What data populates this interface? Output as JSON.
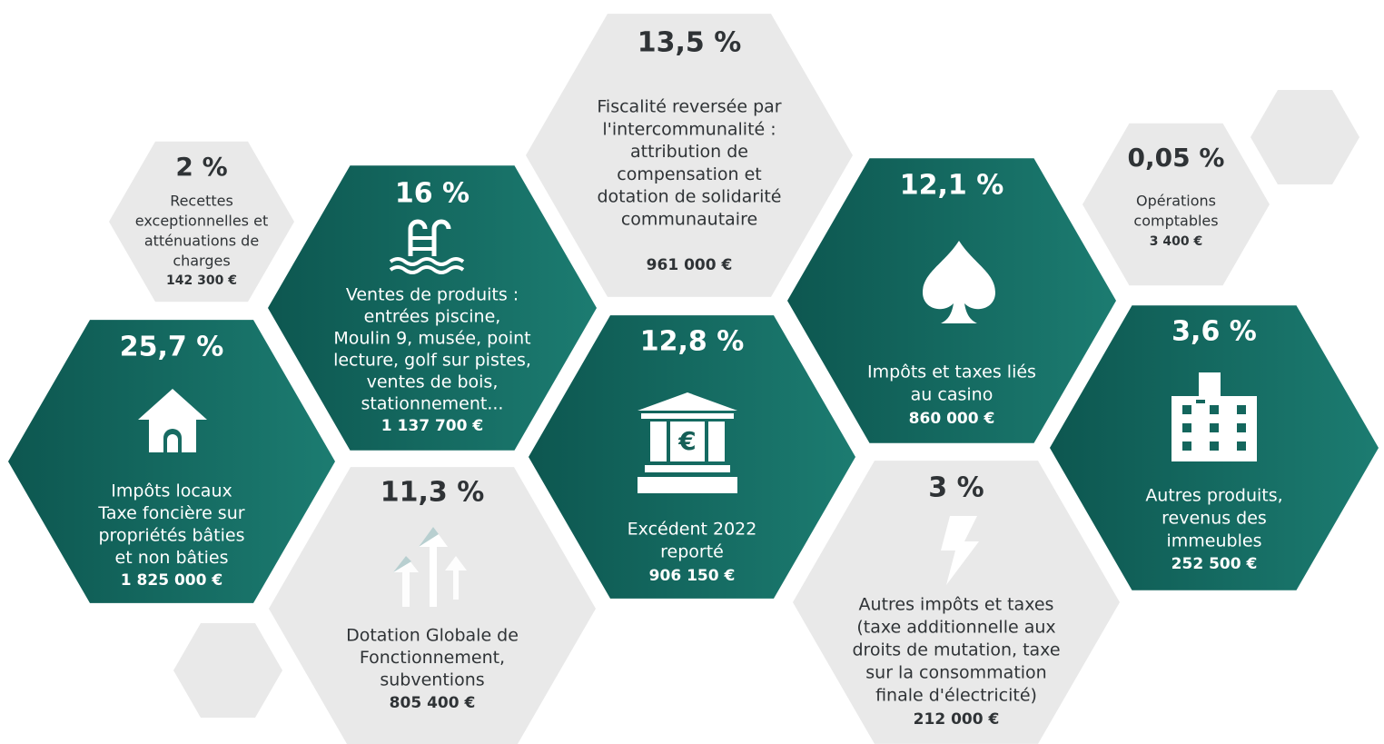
{
  "hexagons": [
    {
      "percent": "2 %",
      "lines": [
        "Recettes",
        "exceptionnelles et",
        "atténuations de",
        "charges"
      ],
      "amount": "142 300 €"
    },
    {
      "percent": "16 %",
      "lines": [
        "Ventes de produits :",
        "entrées piscine,",
        "Moulin 9, musée, point",
        "lecture, golf sur pistes,",
        "ventes de bois,",
        "stationnement..."
      ],
      "amount": "1 137 700 €"
    },
    {
      "percent": "13,5 %",
      "lines": [
        "Fiscalité reversée par",
        "l'intercommunalité :",
        "attribution de",
        "compensation et",
        "dotation de solidarité",
        "communautaire"
      ],
      "amount": "961 000 €"
    },
    {
      "percent": "12,1 %",
      "lines": [
        "Impôts et taxes liés",
        "au casino"
      ],
      "amount": "860 000 €"
    },
    {
      "percent": "0,05 %",
      "lines": [
        "Opérations",
        "comptables"
      ],
      "amount": "3 400 €"
    },
    {
      "percent": "25,7 %",
      "lines": [
        "Impôts locaux",
        "Taxe foncière sur",
        "propriétés bâties",
        "et non bâties"
      ],
      "amount": "1 825 000 €"
    },
    {
      "percent": "11,3 %",
      "lines": [
        "Dotation Globale de",
        "Fonctionnement,",
        "subventions"
      ],
      "amount": "805 400 €"
    },
    {
      "percent": "12,8 %",
      "lines": [
        "Excédent 2022",
        "reporté"
      ],
      "amount": "906 150 €"
    },
    {
      "percent": "3 %",
      "lines": [
        "Autres impôts et taxes",
        "(taxe additionnelle aux",
        "droits de mutation, taxe",
        "sur la consommation",
        "finale d'électricité)"
      ],
      "amount": "212 000 €"
    },
    {
      "percent": "3,6 %",
      "lines": [
        "Autres produits,",
        "revenus des",
        "immeubles"
      ],
      "amount": "252 500 €"
    }
  ]
}
